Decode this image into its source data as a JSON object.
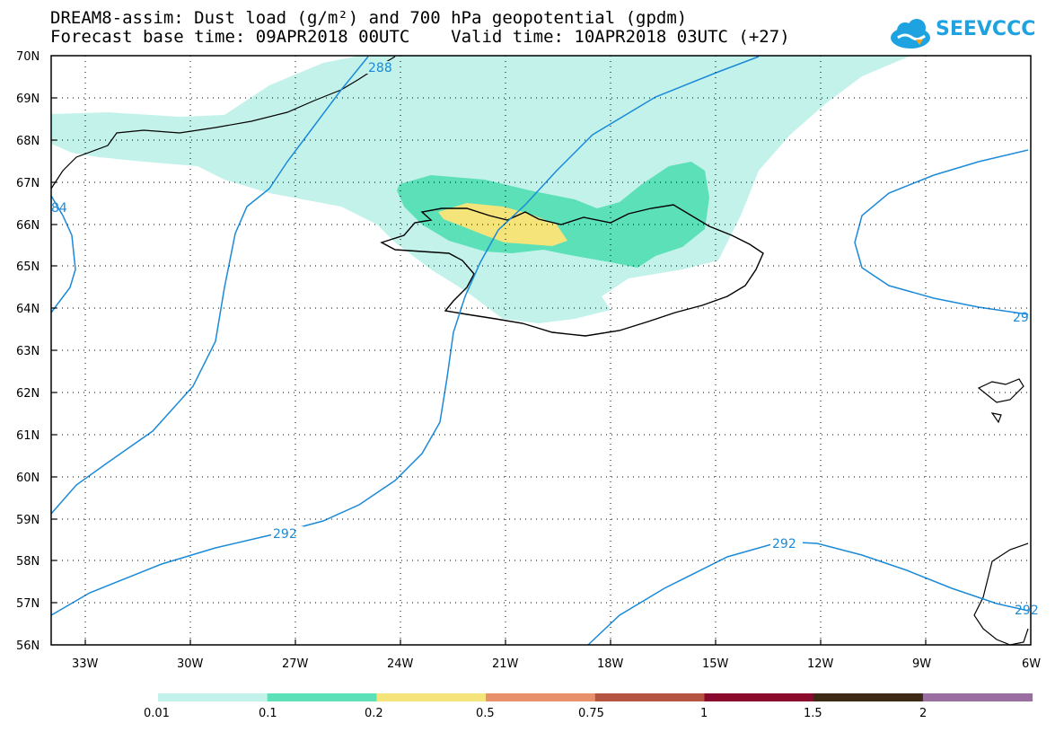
{
  "title": {
    "line1": "DREAM8-assim: Dust load (g/m²) and 700 hPa geopotential (gpdm)",
    "forecast_base": "Forecast base time: 09APR2018 00UTC",
    "valid_time": "Valid time: 10APR2018 03UTC (+27)"
  },
  "logo": {
    "text": "SEEVCCC",
    "icon": "cloud-icon",
    "color": "#1fa3e0"
  },
  "map": {
    "lat_labels": [
      "70N",
      "69N",
      "68N",
      "67N",
      "66N",
      "65N",
      "64N",
      "63N",
      "62N",
      "61N",
      "60N",
      "59N",
      "58N",
      "57N",
      "56N"
    ],
    "lon_labels": [
      "33W",
      "30W",
      "27W",
      "24W",
      "21W",
      "18W",
      "15W",
      "12W",
      "9W",
      "6W"
    ],
    "contour_labels": [
      "288",
      "292",
      "292",
      "292",
      "84",
      "29",
      "29"
    ],
    "contour_color": "#1b8ad8"
  },
  "legend": {
    "labels": [
      "0.01",
      "0.1",
      "0.2",
      "0.5",
      "0.75",
      "1",
      "1.5",
      "2"
    ],
    "colors": [
      "#c3f2ea",
      "#5ce0b8",
      "#f4e47a",
      "#e8906a",
      "#b65442",
      "#8a0a2e",
      "#3c2a14",
      "#9a6ea0"
    ]
  }
}
